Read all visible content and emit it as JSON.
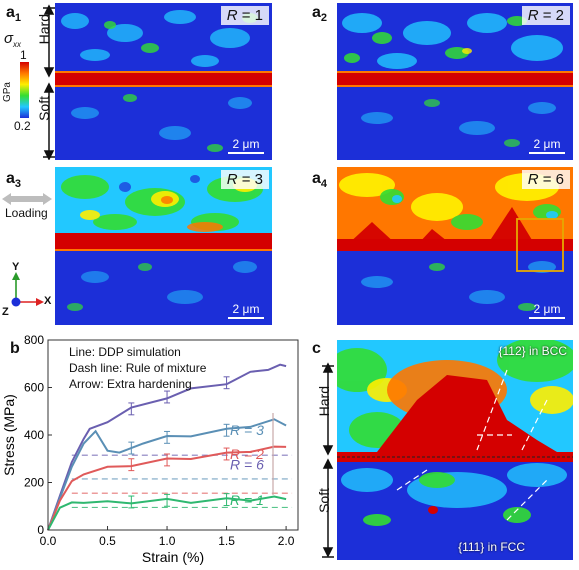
{
  "panels": {
    "a1": {
      "label": "a",
      "sub": "1",
      "r_prefix": "R",
      "r_value": "= 1",
      "scale": "2 μm"
    },
    "a2": {
      "label": "a",
      "sub": "2",
      "r_prefix": "R",
      "r_value": "= 2",
      "scale": "2 μm"
    },
    "a3": {
      "label": "a",
      "sub": "3",
      "r_prefix": "R",
      "r_value": "= 3",
      "scale": "2 μm"
    },
    "a4": {
      "label": "a",
      "sub": "4",
      "r_prefix": "R",
      "r_value": "= 6",
      "scale": "2 μm"
    },
    "b": {
      "label": "b"
    },
    "c": {
      "label": "c"
    }
  },
  "colorbar": {
    "symbol": "σ",
    "subscript": "xx",
    "max": "1",
    "unit": "GPa",
    "min": "0.2",
    "colors": [
      "#d40000",
      "#ff7700",
      "#ffee00",
      "#33dd33",
      "#22c8ff",
      "#1c2fd8"
    ]
  },
  "left_labels": {
    "hard": "Hard",
    "soft": "Soft",
    "loading": "Loading"
  },
  "axes_icon": {
    "y": "Y",
    "x": "X",
    "z": "Z"
  },
  "chart_annotations": {
    "line1": "Line: DDP simulation",
    "line2": "Dash line: Rule of mixture",
    "line3": "Arrow: Extra hardening"
  },
  "panel_c": {
    "hard": "Hard",
    "soft": "Soft",
    "bcc": "{112} in BCC",
    "fcc": "{111} in FCC"
  },
  "chart_data": {
    "type": "line",
    "xlabel": "Strain (%)",
    "ylabel": "Stress (MPa)",
    "xlim": [
      0,
      2.1
    ],
    "ylim": [
      0,
      800
    ],
    "x_ticks": [
      "0.0",
      "0.5",
      "1.0",
      "1.5",
      "2.0"
    ],
    "y_ticks": [
      "0",
      "200",
      "400",
      "600",
      "800"
    ],
    "series": [
      {
        "name": "R = 6",
        "color": "#6a5fb0",
        "x": [
          0.0,
          0.1,
          0.2,
          0.3,
          0.35,
          0.5,
          0.7,
          1.0,
          1.2,
          1.5,
          1.7,
          1.85,
          1.95,
          2.0
        ],
        "y": [
          0,
          150,
          280,
          390,
          420,
          460,
          510,
          560,
          590,
          620,
          660,
          680,
          690,
          690
        ],
        "rule_of_mixture": 315
      },
      {
        "name": "R = 3",
        "color": "#5a8fb5",
        "x": [
          0.0,
          0.1,
          0.2,
          0.3,
          0.4,
          0.5,
          0.6,
          0.8,
          1.0,
          1.2,
          1.5,
          1.7,
          1.9,
          2.0
        ],
        "y": [
          0,
          140,
          260,
          370,
          410,
          340,
          320,
          370,
          390,
          400,
          420,
          440,
          460,
          440
        ],
        "rule_of_mixture": 215
      },
      {
        "name": "R = 2",
        "color": "#e05a5a",
        "x": [
          0.0,
          0.1,
          0.2,
          0.3,
          0.5,
          0.7,
          1.0,
          1.2,
          1.5,
          1.7,
          1.9,
          2.0
        ],
        "y": [
          0,
          130,
          200,
          240,
          260,
          275,
          295,
          305,
          320,
          335,
          345,
          350
        ],
        "rule_of_mixture": 155
      },
      {
        "name": "R = 1",
        "color": "#2fb870",
        "x": [
          0.0,
          0.1,
          0.2,
          0.3,
          0.5,
          0.7,
          1.0,
          1.2,
          1.5,
          1.7,
          1.9,
          2.0
        ],
        "y": [
          0,
          100,
          110,
          120,
          115,
          118,
          125,
          120,
          128,
          130,
          135,
          130
        ],
        "rule_of_mixture": 95
      }
    ]
  }
}
